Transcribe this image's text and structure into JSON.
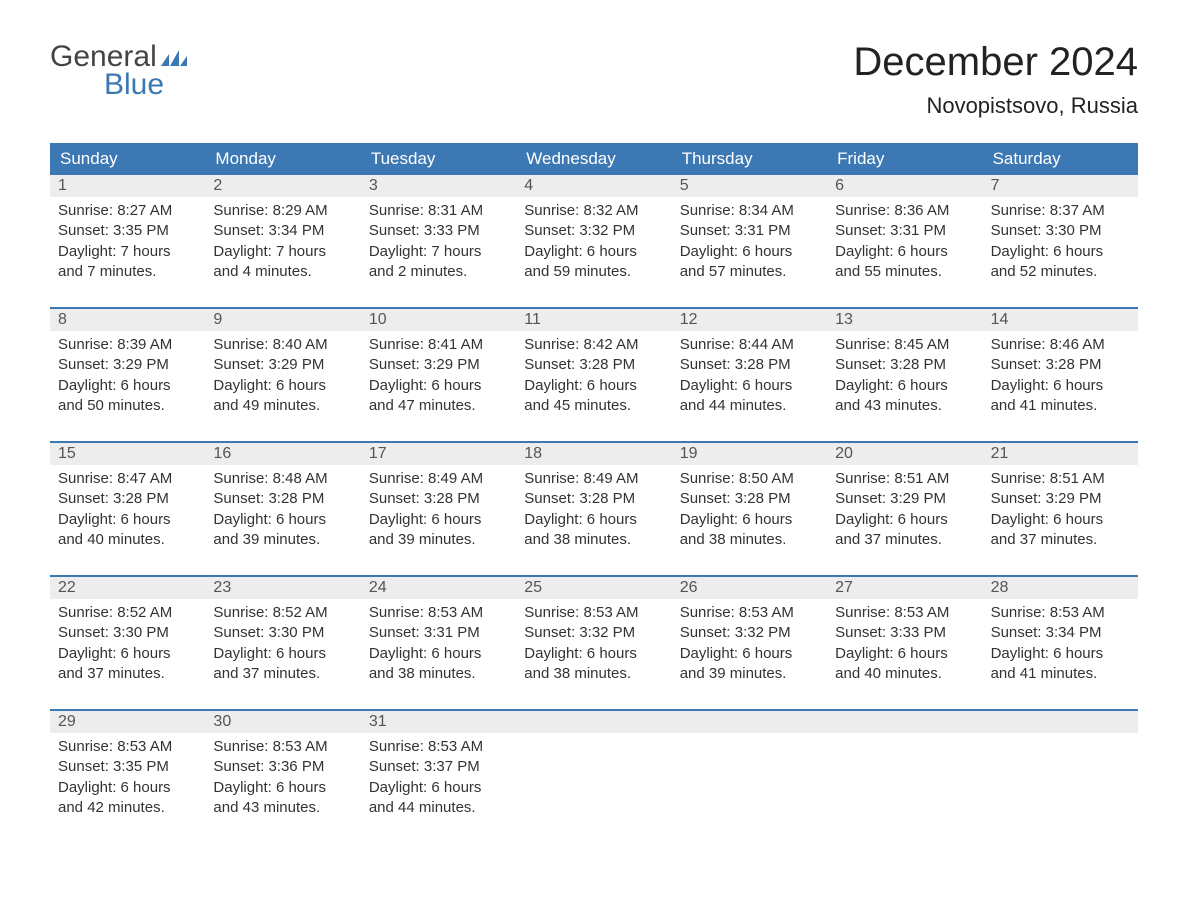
{
  "logo": {
    "line1": "General",
    "line2": "Blue"
  },
  "title": "December 2024",
  "location": "Novopistsovo, Russia",
  "day_headers": [
    "Sunday",
    "Monday",
    "Tuesday",
    "Wednesday",
    "Thursday",
    "Friday",
    "Saturday"
  ],
  "colors": {
    "header_bg": "#3c78b4",
    "header_text": "#ffffff",
    "daynum_bg": "#ededed",
    "text": "#333333",
    "logo_gray": "#444444",
    "logo_blue": "#3c78b4"
  },
  "weeks": [
    [
      {
        "num": "1",
        "sunrise": "Sunrise: 8:27 AM",
        "sunset": "Sunset: 3:35 PM",
        "d1": "Daylight: 7 hours",
        "d2": "and 7 minutes."
      },
      {
        "num": "2",
        "sunrise": "Sunrise: 8:29 AM",
        "sunset": "Sunset: 3:34 PM",
        "d1": "Daylight: 7 hours",
        "d2": "and 4 minutes."
      },
      {
        "num": "3",
        "sunrise": "Sunrise: 8:31 AM",
        "sunset": "Sunset: 3:33 PM",
        "d1": "Daylight: 7 hours",
        "d2": "and 2 minutes."
      },
      {
        "num": "4",
        "sunrise": "Sunrise: 8:32 AM",
        "sunset": "Sunset: 3:32 PM",
        "d1": "Daylight: 6 hours",
        "d2": "and 59 minutes."
      },
      {
        "num": "5",
        "sunrise": "Sunrise: 8:34 AM",
        "sunset": "Sunset: 3:31 PM",
        "d1": "Daylight: 6 hours",
        "d2": "and 57 minutes."
      },
      {
        "num": "6",
        "sunrise": "Sunrise: 8:36 AM",
        "sunset": "Sunset: 3:31 PM",
        "d1": "Daylight: 6 hours",
        "d2": "and 55 minutes."
      },
      {
        "num": "7",
        "sunrise": "Sunrise: 8:37 AM",
        "sunset": "Sunset: 3:30 PM",
        "d1": "Daylight: 6 hours",
        "d2": "and 52 minutes."
      }
    ],
    [
      {
        "num": "8",
        "sunrise": "Sunrise: 8:39 AM",
        "sunset": "Sunset: 3:29 PM",
        "d1": "Daylight: 6 hours",
        "d2": "and 50 minutes."
      },
      {
        "num": "9",
        "sunrise": "Sunrise: 8:40 AM",
        "sunset": "Sunset: 3:29 PM",
        "d1": "Daylight: 6 hours",
        "d2": "and 49 minutes."
      },
      {
        "num": "10",
        "sunrise": "Sunrise: 8:41 AM",
        "sunset": "Sunset: 3:29 PM",
        "d1": "Daylight: 6 hours",
        "d2": "and 47 minutes."
      },
      {
        "num": "11",
        "sunrise": "Sunrise: 8:42 AM",
        "sunset": "Sunset: 3:28 PM",
        "d1": "Daylight: 6 hours",
        "d2": "and 45 minutes."
      },
      {
        "num": "12",
        "sunrise": "Sunrise: 8:44 AM",
        "sunset": "Sunset: 3:28 PM",
        "d1": "Daylight: 6 hours",
        "d2": "and 44 minutes."
      },
      {
        "num": "13",
        "sunrise": "Sunrise: 8:45 AM",
        "sunset": "Sunset: 3:28 PM",
        "d1": "Daylight: 6 hours",
        "d2": "and 43 minutes."
      },
      {
        "num": "14",
        "sunrise": "Sunrise: 8:46 AM",
        "sunset": "Sunset: 3:28 PM",
        "d1": "Daylight: 6 hours",
        "d2": "and 41 minutes."
      }
    ],
    [
      {
        "num": "15",
        "sunrise": "Sunrise: 8:47 AM",
        "sunset": "Sunset: 3:28 PM",
        "d1": "Daylight: 6 hours",
        "d2": "and 40 minutes."
      },
      {
        "num": "16",
        "sunrise": "Sunrise: 8:48 AM",
        "sunset": "Sunset: 3:28 PM",
        "d1": "Daylight: 6 hours",
        "d2": "and 39 minutes."
      },
      {
        "num": "17",
        "sunrise": "Sunrise: 8:49 AM",
        "sunset": "Sunset: 3:28 PM",
        "d1": "Daylight: 6 hours",
        "d2": "and 39 minutes."
      },
      {
        "num": "18",
        "sunrise": "Sunrise: 8:49 AM",
        "sunset": "Sunset: 3:28 PM",
        "d1": "Daylight: 6 hours",
        "d2": "and 38 minutes."
      },
      {
        "num": "19",
        "sunrise": "Sunrise: 8:50 AM",
        "sunset": "Sunset: 3:28 PM",
        "d1": "Daylight: 6 hours",
        "d2": "and 38 minutes."
      },
      {
        "num": "20",
        "sunrise": "Sunrise: 8:51 AM",
        "sunset": "Sunset: 3:29 PM",
        "d1": "Daylight: 6 hours",
        "d2": "and 37 minutes."
      },
      {
        "num": "21",
        "sunrise": "Sunrise: 8:51 AM",
        "sunset": "Sunset: 3:29 PM",
        "d1": "Daylight: 6 hours",
        "d2": "and 37 minutes."
      }
    ],
    [
      {
        "num": "22",
        "sunrise": "Sunrise: 8:52 AM",
        "sunset": "Sunset: 3:30 PM",
        "d1": "Daylight: 6 hours",
        "d2": "and 37 minutes."
      },
      {
        "num": "23",
        "sunrise": "Sunrise: 8:52 AM",
        "sunset": "Sunset: 3:30 PM",
        "d1": "Daylight: 6 hours",
        "d2": "and 37 minutes."
      },
      {
        "num": "24",
        "sunrise": "Sunrise: 8:53 AM",
        "sunset": "Sunset: 3:31 PM",
        "d1": "Daylight: 6 hours",
        "d2": "and 38 minutes."
      },
      {
        "num": "25",
        "sunrise": "Sunrise: 8:53 AM",
        "sunset": "Sunset: 3:32 PM",
        "d1": "Daylight: 6 hours",
        "d2": "and 38 minutes."
      },
      {
        "num": "26",
        "sunrise": "Sunrise: 8:53 AM",
        "sunset": "Sunset: 3:32 PM",
        "d1": "Daylight: 6 hours",
        "d2": "and 39 minutes."
      },
      {
        "num": "27",
        "sunrise": "Sunrise: 8:53 AM",
        "sunset": "Sunset: 3:33 PM",
        "d1": "Daylight: 6 hours",
        "d2": "and 40 minutes."
      },
      {
        "num": "28",
        "sunrise": "Sunrise: 8:53 AM",
        "sunset": "Sunset: 3:34 PM",
        "d1": "Daylight: 6 hours",
        "d2": "and 41 minutes."
      }
    ],
    [
      {
        "num": "29",
        "sunrise": "Sunrise: 8:53 AM",
        "sunset": "Sunset: 3:35 PM",
        "d1": "Daylight: 6 hours",
        "d2": "and 42 minutes."
      },
      {
        "num": "30",
        "sunrise": "Sunrise: 8:53 AM",
        "sunset": "Sunset: 3:36 PM",
        "d1": "Daylight: 6 hours",
        "d2": "and 43 minutes."
      },
      {
        "num": "31",
        "sunrise": "Sunrise: 8:53 AM",
        "sunset": "Sunset: 3:37 PM",
        "d1": "Daylight: 6 hours",
        "d2": "and 44 minutes."
      },
      null,
      null,
      null,
      null
    ]
  ]
}
